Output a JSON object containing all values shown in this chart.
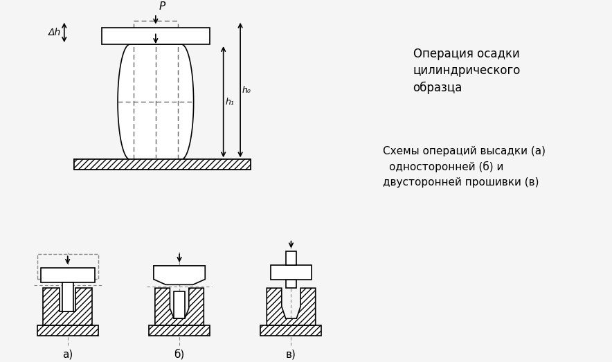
{
  "title1": "Операция осадки",
  "title1_line2": "цилиндрического",
  "title1_line3": "образца",
  "title2_line1": "Схемы операций высадки (а)",
  "title2_line2": "односторонней (б) и",
  "title2_line3": "двусторонней прошивки (в)",
  "label_P": "P",
  "label_delta_h": "Δh",
  "label_h1": "h₁",
  "label_h0": "h₀",
  "label_a": "а)",
  "label_b": "б)",
  "label_v": "в)",
  "bg_color": "#f5f5f5",
  "line_color": "#000000",
  "hatch_color": "#555555",
  "dashed_color": "#444444"
}
